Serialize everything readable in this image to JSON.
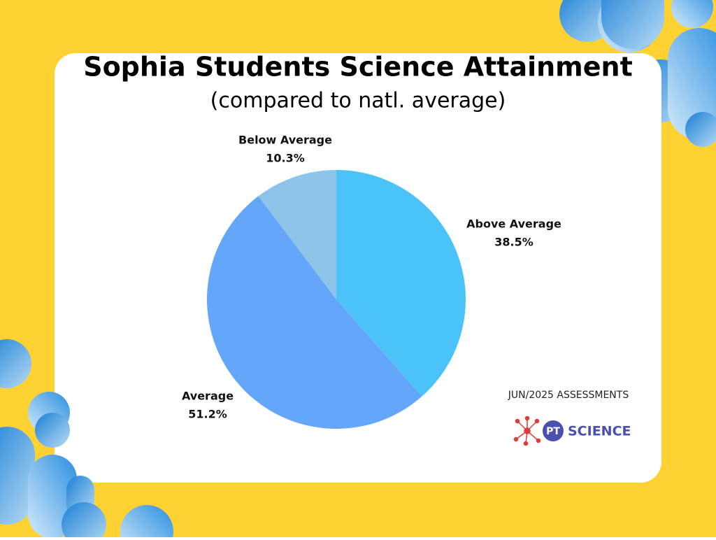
{
  "chart_data": {
    "type": "pie",
    "title": "Sophia Students Science Attainment",
    "subtitle": "(compared to natl. average)",
    "categories": [
      "Above Average",
      "Average",
      "Below Average"
    ],
    "values": [
      38.5,
      51.2,
      10.3
    ],
    "value_labels": [
      "38.5%",
      "51.2%",
      "10.3%"
    ],
    "colors": [
      "#4bc3f9",
      "#64a6fa",
      "#8ec3ea"
    ]
  },
  "footer": "JUN/2025 ASSESSMENTS",
  "logo": {
    "badge": "PT",
    "text": "SCIENCE"
  }
}
